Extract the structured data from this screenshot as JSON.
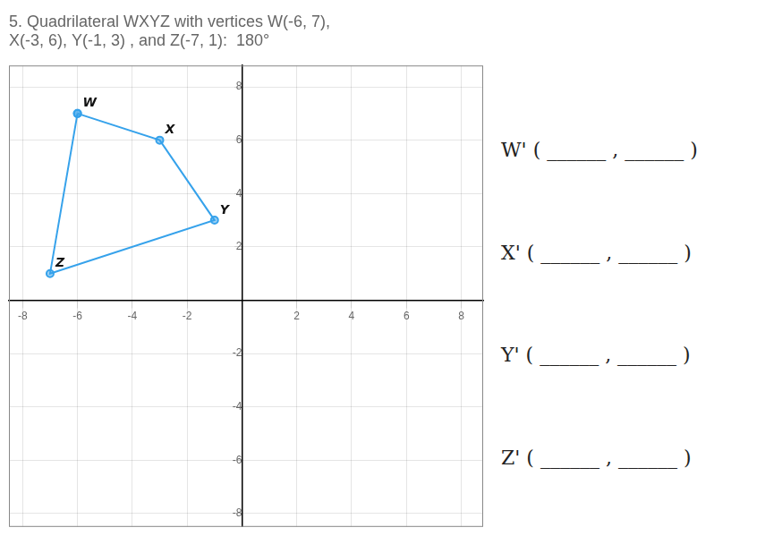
{
  "chart_data": {
    "type": "line",
    "title": [
      "5. Quadrilateral WXYZ with vertices W(-6, 7),",
      "X(-3, 6), Y(-1, 3) , and Z(-7, 1):  180°"
    ],
    "x": [
      -6,
      -3,
      -1,
      -7
    ],
    "values": [
      7,
      6,
      3,
      1
    ],
    "marker": "circle",
    "xlim": [
      -8.5,
      8.8
    ],
    "xticks": [
      -8,
      -6,
      -4,
      -2,
      2,
      4,
      6,
      8
    ],
    "ylim": [
      -8.5,
      8.8
    ],
    "yticks": [
      -8,
      -6,
      -4,
      -2,
      2,
      4,
      6,
      8
    ],
    "grid": true,
    "annotations": [
      {
        "text": "W",
        "x": -6,
        "y": 7
      },
      {
        "text": "X",
        "x": -3,
        "y": 6
      },
      {
        "text": "Y",
        "x": -1,
        "y": 3
      },
      {
        "text": "Z",
        "x": -7,
        "y": 1
      },
      {
        "text": "W' ( ______ , ______ )"
      },
      {
        "text": "X' ( ______ , ______ )"
      },
      {
        "text": "Y' ( ______ , ______ )"
      },
      {
        "text": "Z' ( ______ , ______ )"
      }
    ]
  }
}
